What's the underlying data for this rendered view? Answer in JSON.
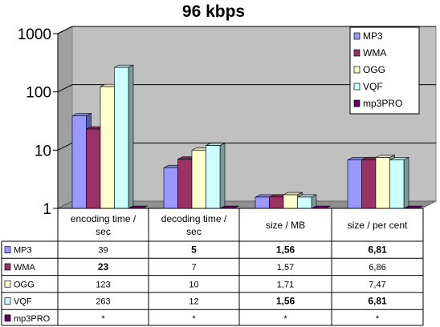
{
  "chart_data": {
    "type": "bar",
    "title": "96 kbps",
    "y_scale": "log",
    "ylim": [
      1,
      1000
    ],
    "y_ticks": [
      "1",
      "10",
      "100",
      "1000"
    ],
    "grid": true,
    "legend_position": "top-right",
    "categories": [
      "encoding time / sec",
      "decoding time / sec",
      "size / MB",
      "size / per cent"
    ],
    "series": [
      {
        "name": "MP3",
        "color": "#9999ff",
        "values": [
          39,
          5,
          1.56,
          6.81
        ],
        "labels": [
          "39",
          "5",
          "1,56",
          "6,81"
        ],
        "bold": [
          false,
          true,
          true,
          true
        ]
      },
      {
        "name": "WMA",
        "color": "#993366",
        "values": [
          23,
          7,
          1.57,
          6.86
        ],
        "labels": [
          "23",
          "7",
          "1,57",
          "6,86"
        ],
        "bold": [
          true,
          false,
          false,
          false
        ]
      },
      {
        "name": "OGG",
        "color": "#ffffcc",
        "values": [
          123,
          10,
          1.71,
          7.47
        ],
        "labels": [
          "123",
          "10",
          "1,71",
          "7,47"
        ],
        "bold": [
          false,
          false,
          false,
          false
        ]
      },
      {
        "name": "VQF",
        "color": "#ccffff",
        "values": [
          263,
          12,
          1.56,
          6.81
        ],
        "labels": [
          "263",
          "12",
          "1,56",
          "6,81"
        ],
        "bold": [
          false,
          false,
          true,
          true
        ]
      },
      {
        "name": "mp3PRO",
        "color": "#660066",
        "values": [
          null,
          null,
          null,
          null
        ],
        "labels": [
          "*",
          "*",
          "*",
          "*"
        ],
        "bold": [
          false,
          false,
          false,
          false
        ]
      }
    ]
  }
}
